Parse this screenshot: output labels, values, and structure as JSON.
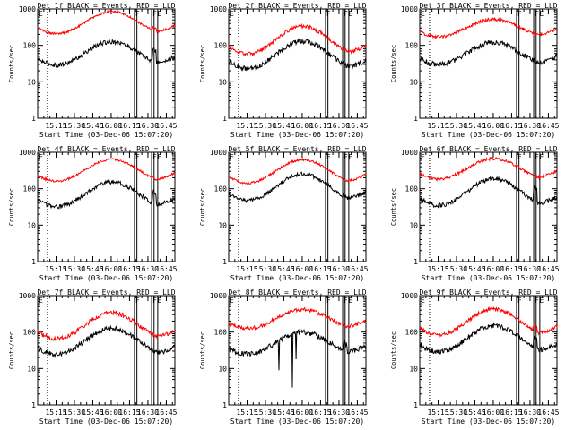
{
  "shared": {
    "x_tick_labels": [
      "15:15",
      "15:30",
      "15:45",
      "16:00",
      "16:15",
      "16:30",
      "16:45"
    ],
    "x_ticks_min": [
      15,
      30,
      45,
      60,
      75,
      90,
      105
    ],
    "x_range_min": [
      0,
      112
    ],
    "y_tick_labels": [
      "1",
      "10",
      "100",
      "1000"
    ],
    "y_ticks": [
      1,
      10,
      100,
      1000
    ],
    "y_range": [
      1,
      1000
    ],
    "ylabel": "Counts/sec",
    "xlabel": "Start Time (03-Dec-06 15:07:20)",
    "dotted_lines_min": [
      8,
      113
    ],
    "marker_lines_min": [
      79,
      81,
      93,
      95,
      98
    ],
    "marker_labels": [
      {
        "text": "E",
        "at_min": 0
      },
      {
        "text": "F",
        "at_min": 79
      },
      {
        "text": "F",
        "at_min": 93
      },
      {
        "text": "E",
        "at_min": 97
      }
    ],
    "colors": {
      "events": "#000000",
      "lld": "#ff0000"
    }
  },
  "chart_data": [
    {
      "type": "line",
      "title": "Det 1f BLACK = Events, RED = LLD",
      "series": [
        {
          "name": "Events",
          "color": "#000000",
          "base": 60,
          "amp": 0.32,
          "noise": 0.06,
          "spike_at": 94,
          "spike": 2.2,
          "dips": []
        },
        {
          "name": "LLD",
          "color": "#ff0000",
          "base": 420,
          "amp": 0.3,
          "noise": 0.03,
          "spike_at": 94,
          "spike": 1.2,
          "dips": []
        }
      ]
    },
    {
      "type": "line",
      "title": "Det 2f BLACK = Events, RED = LLD",
      "series": [
        {
          "name": "Events",
          "color": "#000000",
          "base": 55,
          "amp": 0.38,
          "noise": 0.07,
          "spike_at": -1,
          "spike": 1,
          "dips": []
        },
        {
          "name": "LLD",
          "color": "#ff0000",
          "base": 140,
          "amp": 0.38,
          "noise": 0.05,
          "spike_at": -1,
          "spike": 1,
          "dips": []
        }
      ]
    },
    {
      "type": "line",
      "title": "Det 3f BLACK = Events, RED = LLD",
      "series": [
        {
          "name": "Events",
          "color": "#000000",
          "base": 60,
          "amp": 0.3,
          "noise": 0.07,
          "spike_at": -1,
          "spike": 1,
          "dips": []
        },
        {
          "name": "LLD",
          "color": "#ff0000",
          "base": 300,
          "amp": 0.24,
          "noise": 0.04,
          "spike_at": -1,
          "spike": 1,
          "dips": []
        }
      ]
    },
    {
      "type": "line",
      "title": "Det 4f BLACK = Events, RED = LLD",
      "series": [
        {
          "name": "Events",
          "color": "#000000",
          "base": 70,
          "amp": 0.34,
          "noise": 0.06,
          "spike_at": 94,
          "spike": 2.0,
          "dips": []
        },
        {
          "name": "LLD",
          "color": "#ff0000",
          "base": 320,
          "amp": 0.3,
          "noise": 0.03,
          "spike_at": -1,
          "spike": 1,
          "dips": []
        }
      ]
    },
    {
      "type": "line",
      "title": "Det 5f BLACK = Events, RED = LLD",
      "series": [
        {
          "name": "Events",
          "color": "#000000",
          "base": 110,
          "amp": 0.36,
          "noise": 0.05,
          "spike_at": -1,
          "spike": 1,
          "dips": []
        },
        {
          "name": "LLD",
          "color": "#ff0000",
          "base": 300,
          "amp": 0.32,
          "noise": 0.03,
          "spike_at": -1,
          "spike": 1,
          "dips": []
        }
      ]
    },
    {
      "type": "line",
      "title": "Det 6f BLACK = Events, RED = LLD",
      "series": [
        {
          "name": "Events",
          "color": "#000000",
          "base": 80,
          "amp": 0.36,
          "noise": 0.06,
          "spike_at": 93,
          "spike": 2.4,
          "dips": []
        },
        {
          "name": "LLD",
          "color": "#ff0000",
          "base": 350,
          "amp": 0.28,
          "noise": 0.04,
          "spike_at": -1,
          "spike": 1,
          "dips": []
        }
      ]
    },
    {
      "type": "line",
      "title": "Det 7f BLACK = Events, RED = LLD",
      "series": [
        {
          "name": "Events",
          "color": "#000000",
          "base": 55,
          "amp": 0.36,
          "noise": 0.07,
          "spike_at": -1,
          "spike": 1,
          "dips": []
        },
        {
          "name": "LLD",
          "color": "#ff0000",
          "base": 150,
          "amp": 0.36,
          "noise": 0.06,
          "spike_at": -1,
          "spike": 1,
          "dips": []
        }
      ]
    },
    {
      "type": "line",
      "title": "Det 8f BLACK = Events, RED = LLD",
      "series": [
        {
          "name": "Events",
          "color": "#000000",
          "base": 50,
          "amp": 0.3,
          "noise": 0.07,
          "spike_at": 94,
          "spike": 1.6,
          "dips": [
            {
              "at_min": 41,
              "to": 9
            },
            {
              "at_min": 52,
              "to": 3
            },
            {
              "at_min": 55,
              "to": 18
            }
          ]
        },
        {
          "name": "LLD",
          "color": "#ff0000",
          "base": 230,
          "amp": 0.26,
          "noise": 0.05,
          "spike_at": -1,
          "spike": 1,
          "dips": []
        }
      ]
    },
    {
      "type": "line",
      "title": "Det 9f BLACK = Events, RED = LLD",
      "series": [
        {
          "name": "Events",
          "color": "#000000",
          "base": 65,
          "amp": 0.36,
          "noise": 0.07,
          "spike_at": 93,
          "spike": 1.8,
          "dips": []
        },
        {
          "name": "LLD",
          "color": "#ff0000",
          "base": 190,
          "amp": 0.36,
          "noise": 0.05,
          "spike_at": 93,
          "spike": 1.3,
          "dips": []
        }
      ]
    }
  ]
}
